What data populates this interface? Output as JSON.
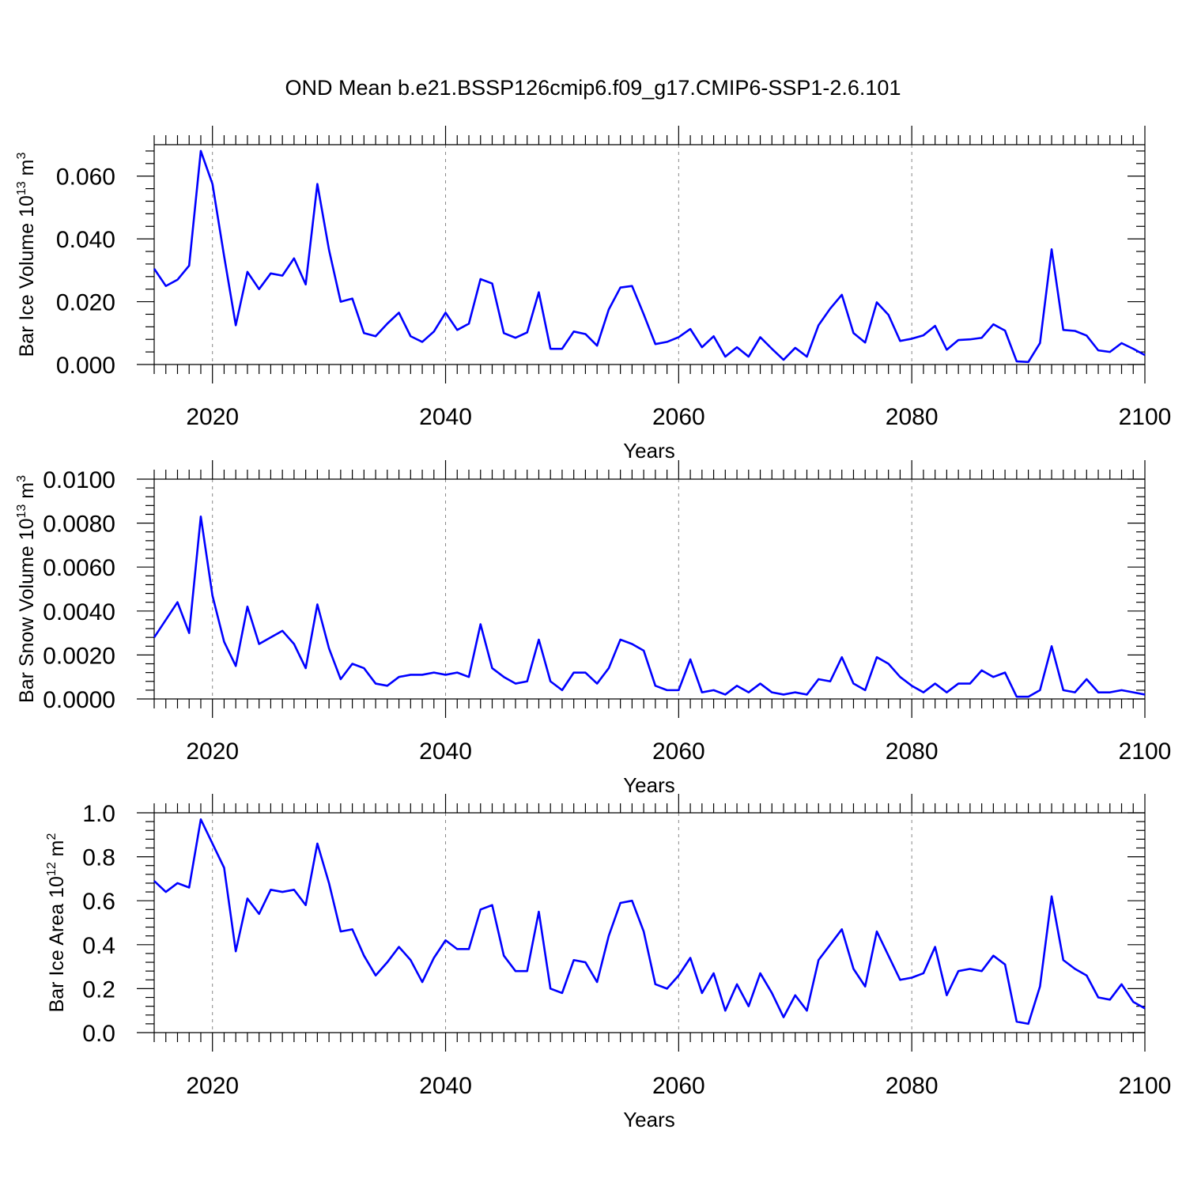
{
  "title": "OND Mean b.e21.BSSP126cmip6.f09_g17.CMIP6-SSP1-2.6.101",
  "line_color": "#0000ff",
  "chart_data": [
    {
      "type": "line",
      "xlabel": "Years",
      "ylabel": "Bar Ice Volume 10",
      "ylabel_sup": "13",
      "ylabel_unit": " m",
      "ylabel_unit_sup": "3",
      "xlim": [
        2015,
        2100
      ],
      "ylim": [
        0,
        0.07
      ],
      "xticks": [
        2020,
        2040,
        2060,
        2080,
        2100
      ],
      "xtick_labels": [
        "2020",
        "2040",
        "2060",
        "2080",
        "2100"
      ],
      "yticks": [
        0,
        0.02,
        0.04,
        0.06
      ],
      "ytick_labels": [
        "0.000",
        "0.020",
        "0.040",
        "0.060"
      ],
      "grid": "vertical dashed",
      "x_start": 2015,
      "series": [
        {
          "values": [
            0.0305,
            0.025,
            0.027,
            0.0315,
            0.068,
            0.0575,
            0.0345,
            0.0125,
            0.0295,
            0.024,
            0.029,
            0.0283,
            0.0338,
            0.0255,
            0.0575,
            0.0365,
            0.02,
            0.021,
            0.01,
            0.009,
            0.013,
            0.0165,
            0.009,
            0.0072,
            0.0105,
            0.0165,
            0.011,
            0.013,
            0.0272,
            0.0258,
            0.01,
            0.0085,
            0.0102,
            0.023,
            0.005,
            0.005,
            0.0105,
            0.0097,
            0.006,
            0.0175,
            0.0245,
            0.025,
            0.016,
            0.0065,
            0.0072,
            0.0087,
            0.0113,
            0.0055,
            0.009,
            0.0025,
            0.0055,
            0.0025,
            0.0087,
            0.005,
            0.0015,
            0.0053,
            0.0025,
            0.0125,
            0.0178,
            0.0222,
            0.01,
            0.007,
            0.0198,
            0.0158,
            0.0075,
            0.0082,
            0.0093,
            0.0123,
            0.0047,
            0.0078,
            0.008,
            0.0085,
            0.0128,
            0.0108,
            0.001,
            0.0008,
            0.0068,
            0.0367,
            0.011,
            0.0107,
            0.0092,
            0.0045,
            0.004,
            0.0068,
            0.005,
            0.003
          ]
        }
      ]
    },
    {
      "type": "line",
      "xlabel": "Years",
      "ylabel": "Bar Snow Volume 10",
      "ylabel_sup": "13",
      "ylabel_unit": " m",
      "ylabel_unit_sup": "3",
      "xlim": [
        2015,
        2100
      ],
      "ylim": [
        0,
        0.01
      ],
      "xticks": [
        2020,
        2040,
        2060,
        2080,
        2100
      ],
      "xtick_labels": [
        "2020",
        "2040",
        "2060",
        "2080",
        "2100"
      ],
      "yticks": [
        0,
        0.002,
        0.004,
        0.006,
        0.008,
        0.01
      ],
      "ytick_labels": [
        "0.0000",
        "0.0020",
        "0.0040",
        "0.0060",
        "0.0080",
        "0.0100"
      ],
      "grid": "vertical dashed",
      "x_start": 2015,
      "series": [
        {
          "values": [
            0.0028,
            0.0036,
            0.0044,
            0.003,
            0.0083,
            0.0047,
            0.0026,
            0.0015,
            0.0042,
            0.0025,
            0.0028,
            0.0031,
            0.0025,
            0.0014,
            0.0043,
            0.0023,
            0.0009,
            0.0016,
            0.0014,
            0.0007,
            0.0006,
            0.001,
            0.0011,
            0.0011,
            0.0012,
            0.0011,
            0.0012,
            0.001,
            0.0034,
            0.0014,
            0.001,
            0.0007,
            0.0008,
            0.0027,
            0.0008,
            0.0004,
            0.0012,
            0.0012,
            0.0007,
            0.0014,
            0.0027,
            0.0025,
            0.0022,
            0.0006,
            0.0004,
            0.0004,
            0.0018,
            0.0003,
            0.0004,
            0.0002,
            0.0006,
            0.0003,
            0.0007,
            0.0003,
            0.0002,
            0.0003,
            0.0002,
            0.0009,
            0.0008,
            0.0019,
            0.0007,
            0.0004,
            0.0019,
            0.0016,
            0.001,
            0.0006,
            0.0003,
            0.0007,
            0.0003,
            0.0007,
            0.0007,
            0.0013,
            0.001,
            0.0012,
            0.0001,
            0.0001,
            0.0004,
            0.0024,
            0.0004,
            0.0003,
            0.0009,
            0.0003,
            0.0003,
            0.0004,
            0.0003,
            0.0002
          ]
        }
      ]
    },
    {
      "type": "line",
      "xlabel": "Years",
      "ylabel": "Bar Ice Area 10",
      "ylabel_sup": "12",
      "ylabel_unit": " m",
      "ylabel_unit_sup": "2",
      "xlim": [
        2015,
        2100
      ],
      "ylim": [
        0,
        1.0
      ],
      "xticks": [
        2020,
        2040,
        2060,
        2080,
        2100
      ],
      "xtick_labels": [
        "2020",
        "2040",
        "2060",
        "2080",
        "2100"
      ],
      "yticks": [
        0,
        0.2,
        0.4,
        0.6,
        0.8,
        1.0
      ],
      "ytick_labels": [
        "0.0",
        "0.2",
        "0.4",
        "0.6",
        "0.8",
        "1.0"
      ],
      "grid": "vertical dashed",
      "x_start": 2015,
      "series": [
        {
          "values": [
            0.69,
            0.64,
            0.68,
            0.66,
            0.97,
            0.86,
            0.75,
            0.37,
            0.61,
            0.54,
            0.65,
            0.64,
            0.65,
            0.58,
            0.86,
            0.68,
            0.46,
            0.47,
            0.35,
            0.26,
            0.32,
            0.39,
            0.33,
            0.23,
            0.34,
            0.42,
            0.38,
            0.38,
            0.56,
            0.58,
            0.35,
            0.28,
            0.28,
            0.55,
            0.2,
            0.18,
            0.33,
            0.32,
            0.23,
            0.44,
            0.59,
            0.6,
            0.46,
            0.22,
            0.2,
            0.26,
            0.34,
            0.18,
            0.27,
            0.1,
            0.22,
            0.12,
            0.27,
            0.18,
            0.07,
            0.17,
            0.1,
            0.33,
            0.4,
            0.47,
            0.29,
            0.21,
            0.46,
            0.35,
            0.24,
            0.25,
            0.27,
            0.39,
            0.17,
            0.28,
            0.29,
            0.28,
            0.35,
            0.31,
            0.05,
            0.04,
            0.21,
            0.62,
            0.33,
            0.29,
            0.26,
            0.16,
            0.15,
            0.22,
            0.14,
            0.11
          ]
        }
      ]
    }
  ]
}
